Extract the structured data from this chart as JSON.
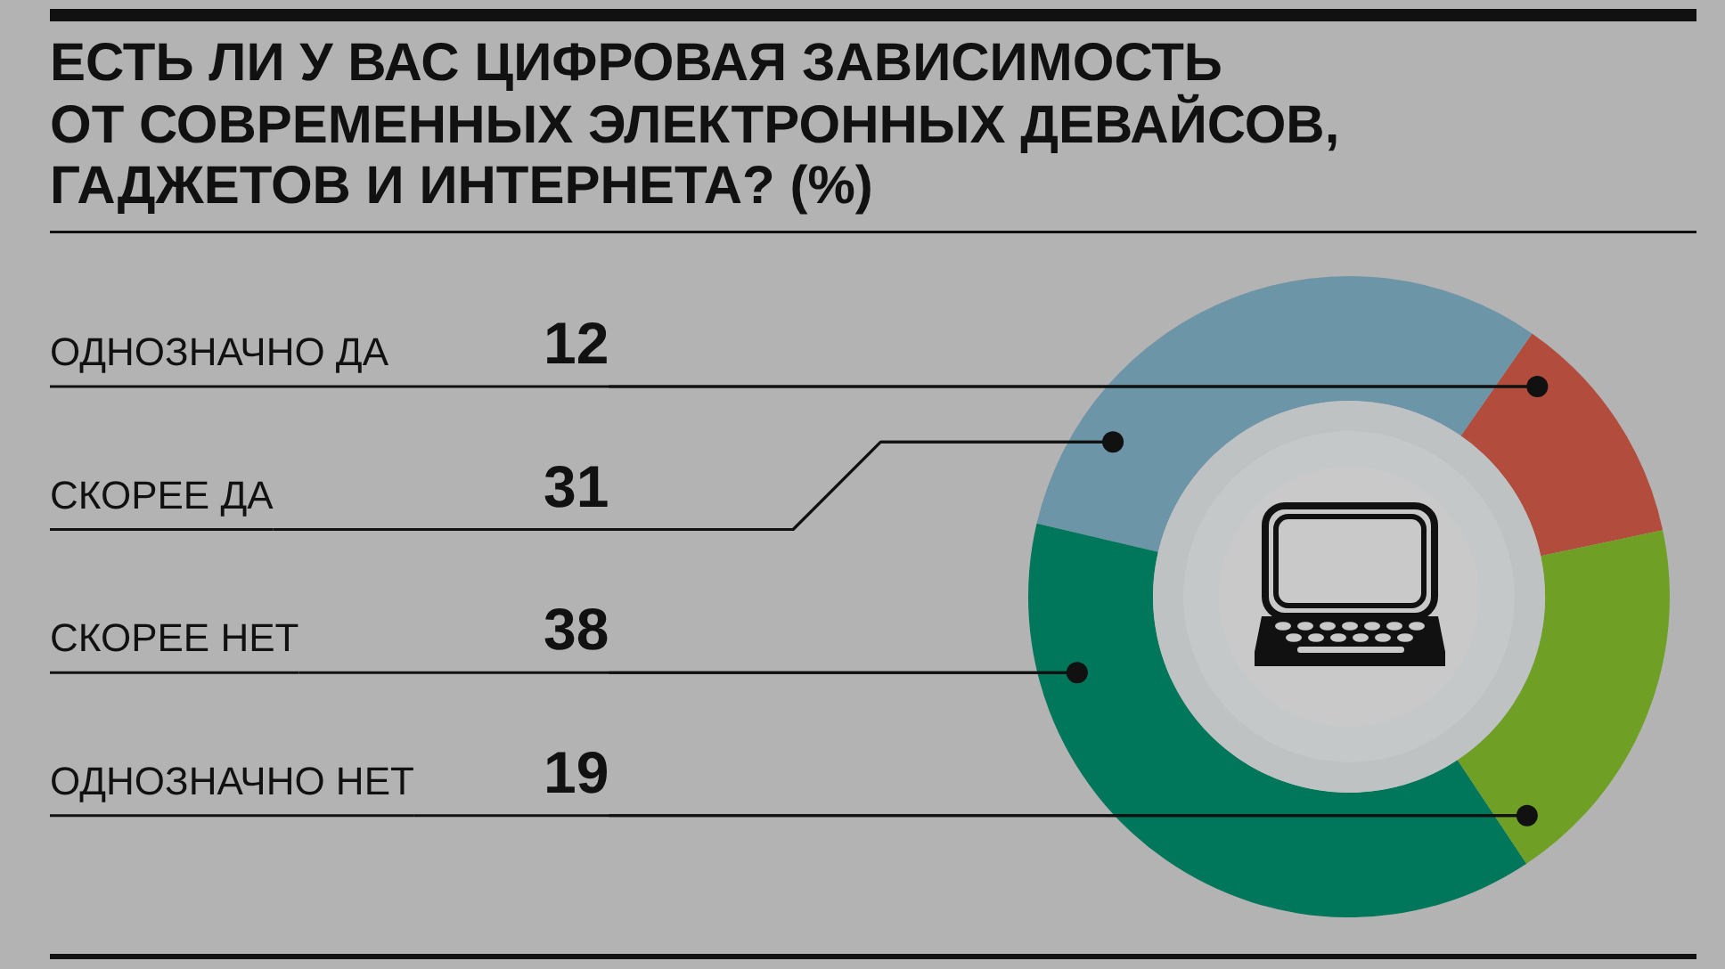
{
  "chart_data": {
    "type": "donut",
    "title": "ЕСТЬ ЛИ У ВАС ЦИФРОВАЯ ЗАВИСИМОСТЬ\nОТ СОВРЕМЕННЫХ ЭЛЕКТРОННЫХ ДЕВАЙСОВ,\nГАДЖЕТОВ И ИНТЕРНЕТА? (%)",
    "categories": [
      "ОДНОЗНАЧНО ДА",
      "СКОРЕЕ ДА",
      "СКОРЕЕ НЕТ",
      "ОДНОЗНАЧНО НЕТ"
    ],
    "values": [
      12,
      31,
      38,
      19
    ],
    "colors": [
      "#b24c3c",
      "#6c95a7",
      "#00765a",
      "#6f9f24"
    ],
    "data_labels": true,
    "legend": false
  }
}
